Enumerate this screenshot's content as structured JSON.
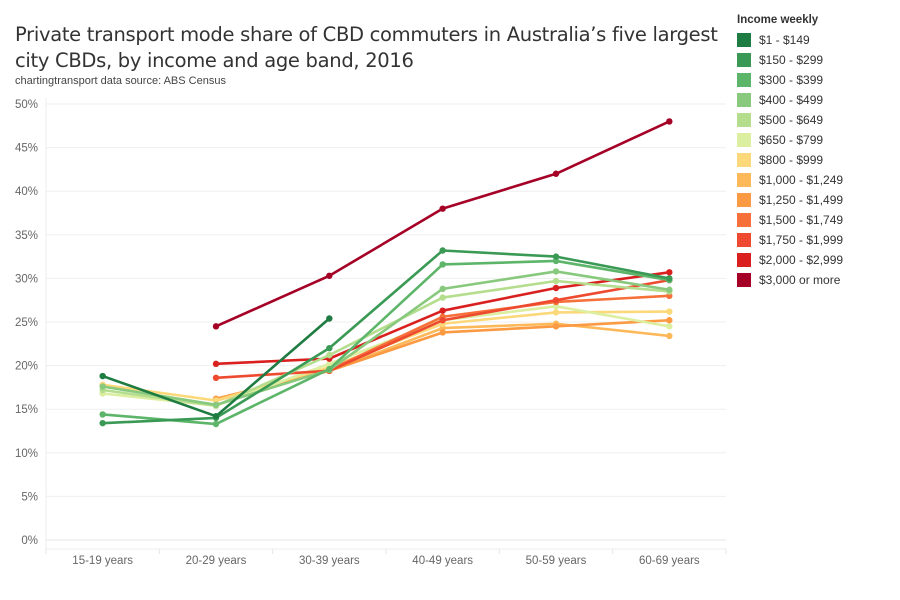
{
  "header": {
    "title": "Private transport mode share of CBD commuters in Australia’s five largest city CBDs, by income and age band, 2016",
    "subtitle": "chartingtransport  data source: ABS Census"
  },
  "legend": {
    "title": "Income weekly"
  },
  "chart_data": {
    "type": "line",
    "title": "Private transport mode share of CBD commuters in Australia’s five largest city CBDs, by income and age band, 2016",
    "subtitle": "chartingtransport  data source: ABS Census",
    "xlabel": "",
    "ylabel": "",
    "categories": [
      "15-19 years",
      "20-29 years",
      "30-39 years",
      "40-49 years",
      "50-59 years",
      "60-69 years"
    ],
    "ylim": [
      0,
      50
    ],
    "yticks": [
      0,
      5,
      10,
      15,
      20,
      25,
      30,
      35,
      40,
      45,
      50
    ],
    "ytick_labels": [
      "0%",
      "5%",
      "10%",
      "15%",
      "20%",
      "25%",
      "30%",
      "35%",
      "40%",
      "45%",
      "50%"
    ],
    "grid": true,
    "legend_title": "Income weekly",
    "legend_position": "right",
    "series": [
      {
        "name": "$1 - $149",
        "color": "#1e7b42",
        "values": [
          18.8,
          14.2,
          25.4,
          null,
          null,
          null
        ]
      },
      {
        "name": "$150 - $299",
        "color": "#3a9a55",
        "values": [
          13.4,
          14.0,
          22.0,
          33.2,
          32.5,
          30.0
        ]
      },
      {
        "name": "$300 - $399",
        "color": "#5db56a",
        "values": [
          14.4,
          13.3,
          19.6,
          31.6,
          32.0,
          29.8
        ]
      },
      {
        "name": "$400 - $499",
        "color": "#88c97d",
        "values": [
          17.6,
          15.5,
          19.5,
          28.8,
          30.8,
          28.7
        ]
      },
      {
        "name": "$500 - $649",
        "color": "#b5dd8e",
        "values": [
          17.2,
          15.4,
          21.2,
          27.8,
          29.7,
          28.5
        ]
      },
      {
        "name": "$650 - $799",
        "color": "#dcee9f",
        "values": [
          16.8,
          15.4,
          20.2,
          25.2,
          26.8,
          24.5
        ]
      },
      {
        "name": "$800 - $999",
        "color": "#fbd97a",
        "values": [
          17.8,
          16.0,
          19.8,
          24.8,
          26.1,
          26.2
        ]
      },
      {
        "name": "$1,000 - $1,249",
        "color": "#fdb85a",
        "values": [
          null,
          16.0,
          19.4,
          24.3,
          24.8,
          23.4
        ]
      },
      {
        "name": "$1,250 - $1,499",
        "color": "#fb9a42",
        "values": [
          null,
          16.2,
          19.4,
          23.8,
          24.5,
          25.2
        ]
      },
      {
        "name": "$1,500 - $1,749",
        "color": "#f6703a",
        "values": [
          null,
          null,
          19.5,
          25.6,
          27.3,
          28.0
        ]
      },
      {
        "name": "$1,750 - $1,999",
        "color": "#ee4a2f",
        "values": [
          null,
          18.6,
          19.4,
          25.2,
          27.5,
          29.8
        ]
      },
      {
        "name": "$2,000 - $2,999",
        "color": "#d9201f",
        "values": [
          null,
          20.2,
          20.8,
          26.3,
          28.9,
          30.7
        ]
      },
      {
        "name": "$3,000 or more",
        "color": "#a50026",
        "values": [
          null,
          24.5,
          30.3,
          38.0,
          42.0,
          48.0
        ]
      }
    ]
  }
}
